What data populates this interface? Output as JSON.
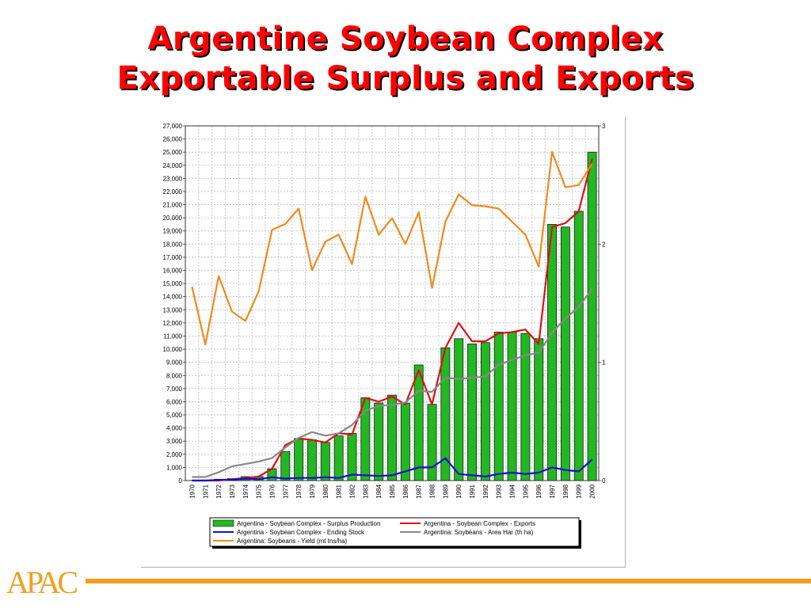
{
  "slide": {
    "title_line1": "Argentine Soybean Complex",
    "title_line2": "Exportable Surplus and Exports",
    "logo_text": "APAC"
  },
  "colors": {
    "title": "#ff0000",
    "bars": "#22b822",
    "exports": "#dd1111",
    "ending_stock": "#1010cc",
    "area": "#888888",
    "yield": "#f08a1c",
    "logo": "#f0a020"
  },
  "chart_data": {
    "type": "bar+line",
    "categories": [
      "1970",
      "1971",
      "1972",
      "1973",
      "1974",
      "1975",
      "1976",
      "1977",
      "1978",
      "1979",
      "1980",
      "1981",
      "1982",
      "1983",
      "1984",
      "1985",
      "1986",
      "1987",
      "1988",
      "1989",
      "1990",
      "1991",
      "1992",
      "1993",
      "1994",
      "1995",
      "1996",
      "1997",
      "1998",
      "1999",
      "2000"
    ],
    "y_left": {
      "min": 0,
      "max": 27000,
      "step": 1000,
      "ticks": [
        "0",
        "1,000",
        "2,000",
        "3,000",
        "4,000",
        "5,000",
        "6,000",
        "7,000",
        "8,000",
        "9,000",
        "10,000",
        "11,000",
        "12,000",
        "13,000",
        "14,000",
        "15,000",
        "16,000",
        "17,000",
        "18,000",
        "19,000",
        "20,000",
        "21,000",
        "22,000",
        "23,000",
        "24,000",
        "25,000",
        "26,000",
        "27,000"
      ]
    },
    "y_right": {
      "min": 0,
      "max": 3,
      "step": 1,
      "ticks": [
        "0",
        "1",
        "2",
        "3"
      ]
    },
    "grid": true,
    "legend_position": "bottom",
    "series": [
      {
        "name": "Argentina - Soybean Complex - Surplus Production",
        "kind": "bar",
        "axis": "left",
        "color": "#22b822",
        "values": [
          0,
          0,
          100,
          150,
          300,
          300,
          900,
          2200,
          3200,
          3100,
          2900,
          3400,
          3600,
          6300,
          5900,
          6500,
          5900,
          8800,
          5800,
          10100,
          10800,
          10400,
          10500,
          11300,
          11300,
          11200,
          10800,
          19500,
          19300,
          20500,
          25000
        ]
      },
      {
        "name": "Argentina - Soybean Complex - Exports",
        "kind": "line",
        "axis": "left",
        "color": "#dd1111",
        "values": [
          0,
          0,
          0,
          100,
          200,
          300,
          900,
          2700,
          3200,
          3100,
          2900,
          3600,
          3500,
          6300,
          6000,
          6400,
          5800,
          8400,
          5800,
          10100,
          12000,
          10600,
          10600,
          11200,
          11300,
          11500,
          10400,
          19300,
          19600,
          20500,
          24500
        ]
      },
      {
        "name": "Argentina - Soybean Complex - Ending Stock",
        "kind": "line",
        "axis": "left",
        "color": "#1010cc",
        "values": [
          0,
          0,
          50,
          50,
          150,
          100,
          250,
          150,
          200,
          200,
          250,
          200,
          450,
          400,
          350,
          400,
          700,
          1000,
          1000,
          1700,
          500,
          400,
          300,
          500,
          600,
          500,
          600,
          1000,
          800,
          700,
          1600
        ]
      },
      {
        "name": "Argentina: Soybeans - Area Har (th ha)",
        "kind": "line",
        "axis": "right",
        "color": "#888888",
        "values": [
          0.03,
          0.03,
          0.07,
          0.12,
          0.14,
          0.16,
          0.19,
          0.28,
          0.36,
          0.41,
          0.38,
          0.4,
          0.47,
          0.59,
          0.63,
          0.64,
          0.66,
          0.76,
          0.75,
          0.87,
          0.86,
          0.87,
          0.88,
          0.98,
          1.02,
          1.06,
          1.08,
          1.25,
          1.37,
          1.47,
          1.62
        ]
      },
      {
        "name": "Argentina: Soybeans - Yield (mt tns/ha)",
        "kind": "line",
        "axis": "right",
        "color": "#f08a1c",
        "values": [
          1.64,
          1.15,
          1.73,
          1.43,
          1.35,
          1.6,
          2.12,
          2.17,
          2.3,
          1.78,
          2.02,
          2.08,
          1.83,
          2.4,
          2.08,
          2.22,
          2.0,
          2.27,
          1.63,
          2.19,
          2.42,
          2.33,
          2.32,
          2.3,
          2.19,
          2.08,
          1.81,
          2.78,
          2.48,
          2.5,
          2.68
        ]
      }
    ]
  }
}
